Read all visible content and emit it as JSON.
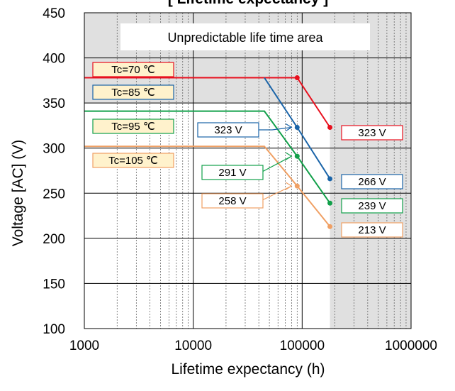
{
  "chart_data": {
    "type": "line",
    "title": "[ Lifetime expectancy ]",
    "xlabel": "Lifetime expectancy (h)",
    "ylabel": "Voltage [AC] (V)",
    "x_scale": "log",
    "xlim": [
      1000,
      1000000
    ],
    "ylim": [
      100,
      450
    ],
    "x_ticks": [
      "1000",
      "10000",
      "100000",
      "1000000"
    ],
    "y_ticks": [
      "100",
      "150",
      "200",
      "250",
      "300",
      "350",
      "400",
      "450"
    ],
    "grid": true,
    "region_label": "Unpredictable life time area",
    "shaded_regions": [
      {
        "x": [
          1000,
          1000000
        ],
        "y": [
          350,
          450
        ]
      },
      {
        "x": [
          180000,
          1000000
        ],
        "y": [
          100,
          450
        ]
      }
    ],
    "series": [
      {
        "name": "Tc=70 ℃",
        "color": "#e8101e",
        "x": [
          1000,
          90000,
          180000
        ],
        "y": [
          378,
          378,
          323
        ]
      },
      {
        "name": "Tc=85 ℃",
        "color": "#1a64a8",
        "x": [
          45000,
          90000,
          180000
        ],
        "y": [
          378,
          323,
          266
        ]
      },
      {
        "name": "Tc=95 ℃",
        "color": "#12a04a",
        "x": [
          1000,
          45000,
          90000,
          180000
        ],
        "y": [
          341,
          341,
          291,
          239
        ]
      },
      {
        "name": "Tc=105 ℃",
        "color": "#f0a064",
        "x": [
          1000,
          45000,
          90000,
          180000
        ],
        "y": [
          302,
          302,
          258,
          213
        ]
      }
    ],
    "point_labels": [
      {
        "text": "323 V",
        "series": "Tc=85 ℃",
        "x": 90000,
        "y": 323
      },
      {
        "text": "291 V",
        "series": "Tc=95 ℃",
        "x": 90000,
        "y": 291
      },
      {
        "text": "258 V",
        "series": "Tc=105 ℃",
        "x": 90000,
        "y": 258
      }
    ],
    "end_labels": [
      {
        "text": "323 V",
        "series": "Tc=70 ℃",
        "y": 323
      },
      {
        "text": "266 V",
        "series": "Tc=85 ℃",
        "y": 266
      },
      {
        "text": "239 V",
        "series": "Tc=95 ℃",
        "y": 239
      },
      {
        "text": "213 V",
        "series": "Tc=105 ℃",
        "y": 213
      }
    ],
    "colors": {
      "legend_fill": "#fff2cc",
      "region_fill": "#e0e0e0",
      "label_fill": "#ffffff"
    }
  }
}
